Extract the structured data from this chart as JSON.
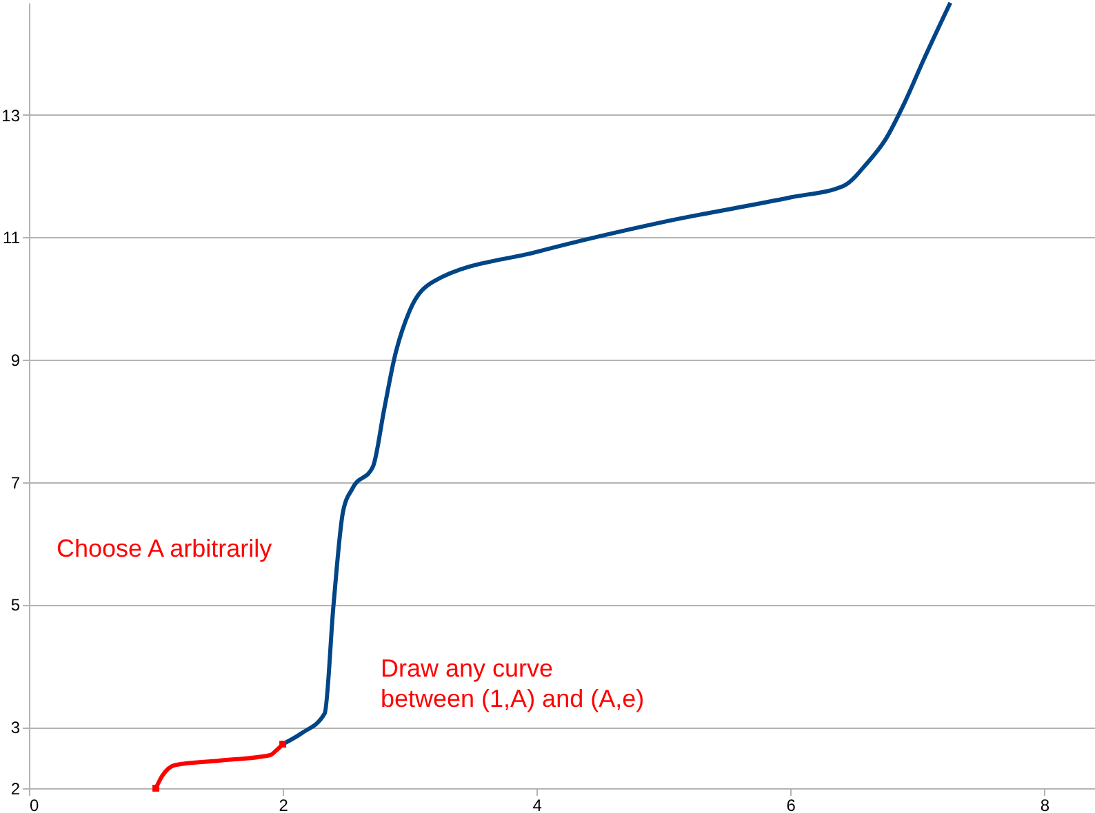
{
  "chart_data": {
    "type": "line",
    "xlim": [
      0,
      8.4
    ],
    "ylim": [
      2,
      14.83
    ],
    "xticks": [
      0,
      2,
      4,
      6,
      8
    ],
    "yticks": [
      2,
      3,
      5,
      7,
      9,
      11,
      13
    ],
    "grid": "y",
    "line_style": "solid",
    "series": [
      {
        "color": "#ff0000",
        "x": [
          1,
          1.05,
          1.155,
          1.5,
          1.9,
          1.95,
          2
        ],
        "values": [
          2,
          2.2,
          2.38,
          2.45,
          2.54,
          2.62,
          2.72
        ]
      },
      {
        "color": "#004586",
        "x": [
          2,
          2.15,
          2.33,
          2.4,
          2.475,
          2.55,
          2.71,
          2.8,
          2.88,
          3.0,
          3.19,
          4,
          5,
          6,
          6.42,
          6.6,
          6.75,
          6.9,
          7.05,
          7.26
        ],
        "values": [
          2.72,
          2.9,
          3.22,
          5.0,
          6.52,
          6.9,
          7.25,
          8.2,
          9.03,
          9.8,
          10.28,
          10.76,
          11.25,
          11.65,
          11.84,
          12.2,
          12.6,
          13.2,
          13.9,
          14.83
        ]
      },
      {
        "type": "scatter",
        "marker": "square",
        "color": "#ff0000",
        "x": [
          1,
          2
        ],
        "values": [
          2,
          2.72
        ]
      }
    ],
    "annotations": [
      "Choose A arbitrarily",
      "Draw any curve\nbetween (1,A) and (A,e)"
    ]
  }
}
